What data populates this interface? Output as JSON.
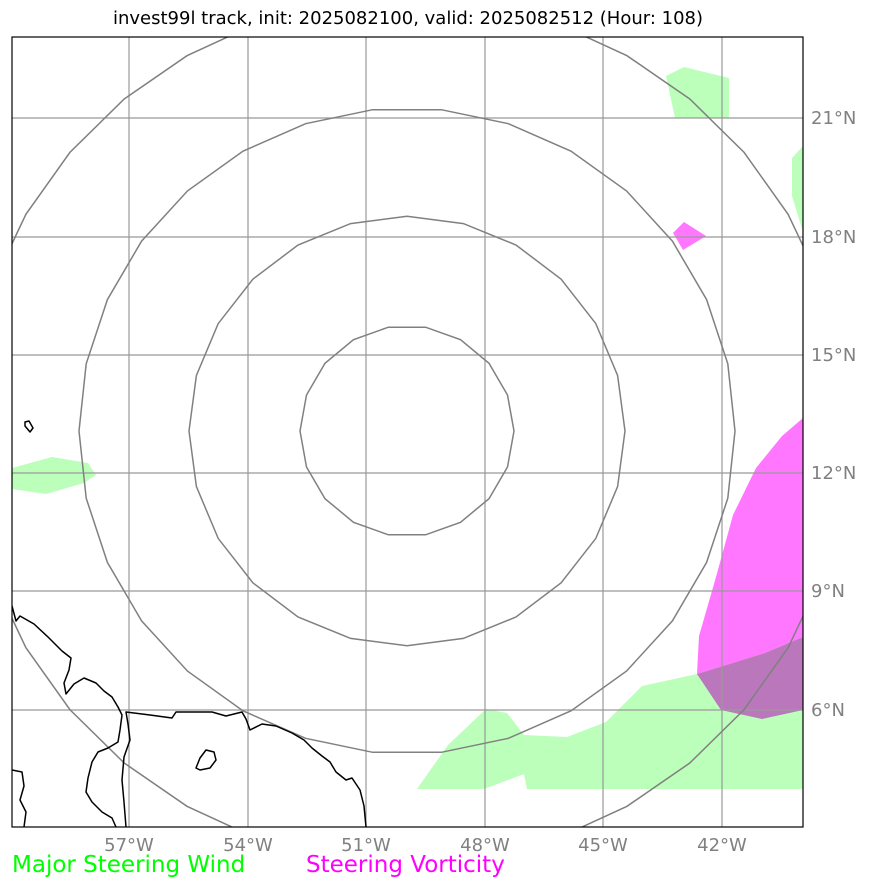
{
  "title": "invest99l track, init: 2025082100, valid: 2025082512 (Hour: 108)",
  "lat_ticks": [
    "21°N",
    "18°N",
    "15°N",
    "12°N",
    "9°N",
    "6°N"
  ],
  "lon_ticks": [
    "57°W",
    "54°W",
    "51°W",
    "48°W",
    "45°W",
    "42°W"
  ],
  "legend": {
    "wind_label": "Major Steering Wind",
    "wind_color": "#00ff00",
    "vorticity_label": "Steering Vorticity",
    "vorticity_color": "#ff00ff"
  },
  "colors": {
    "wind_fill": "#bbffbb",
    "vorticity_fill": "#ff77ff",
    "overlap_fill": "#bb77bb",
    "grid": "#999999",
    "rings": "#808080",
    "coast": "#000000"
  }
}
